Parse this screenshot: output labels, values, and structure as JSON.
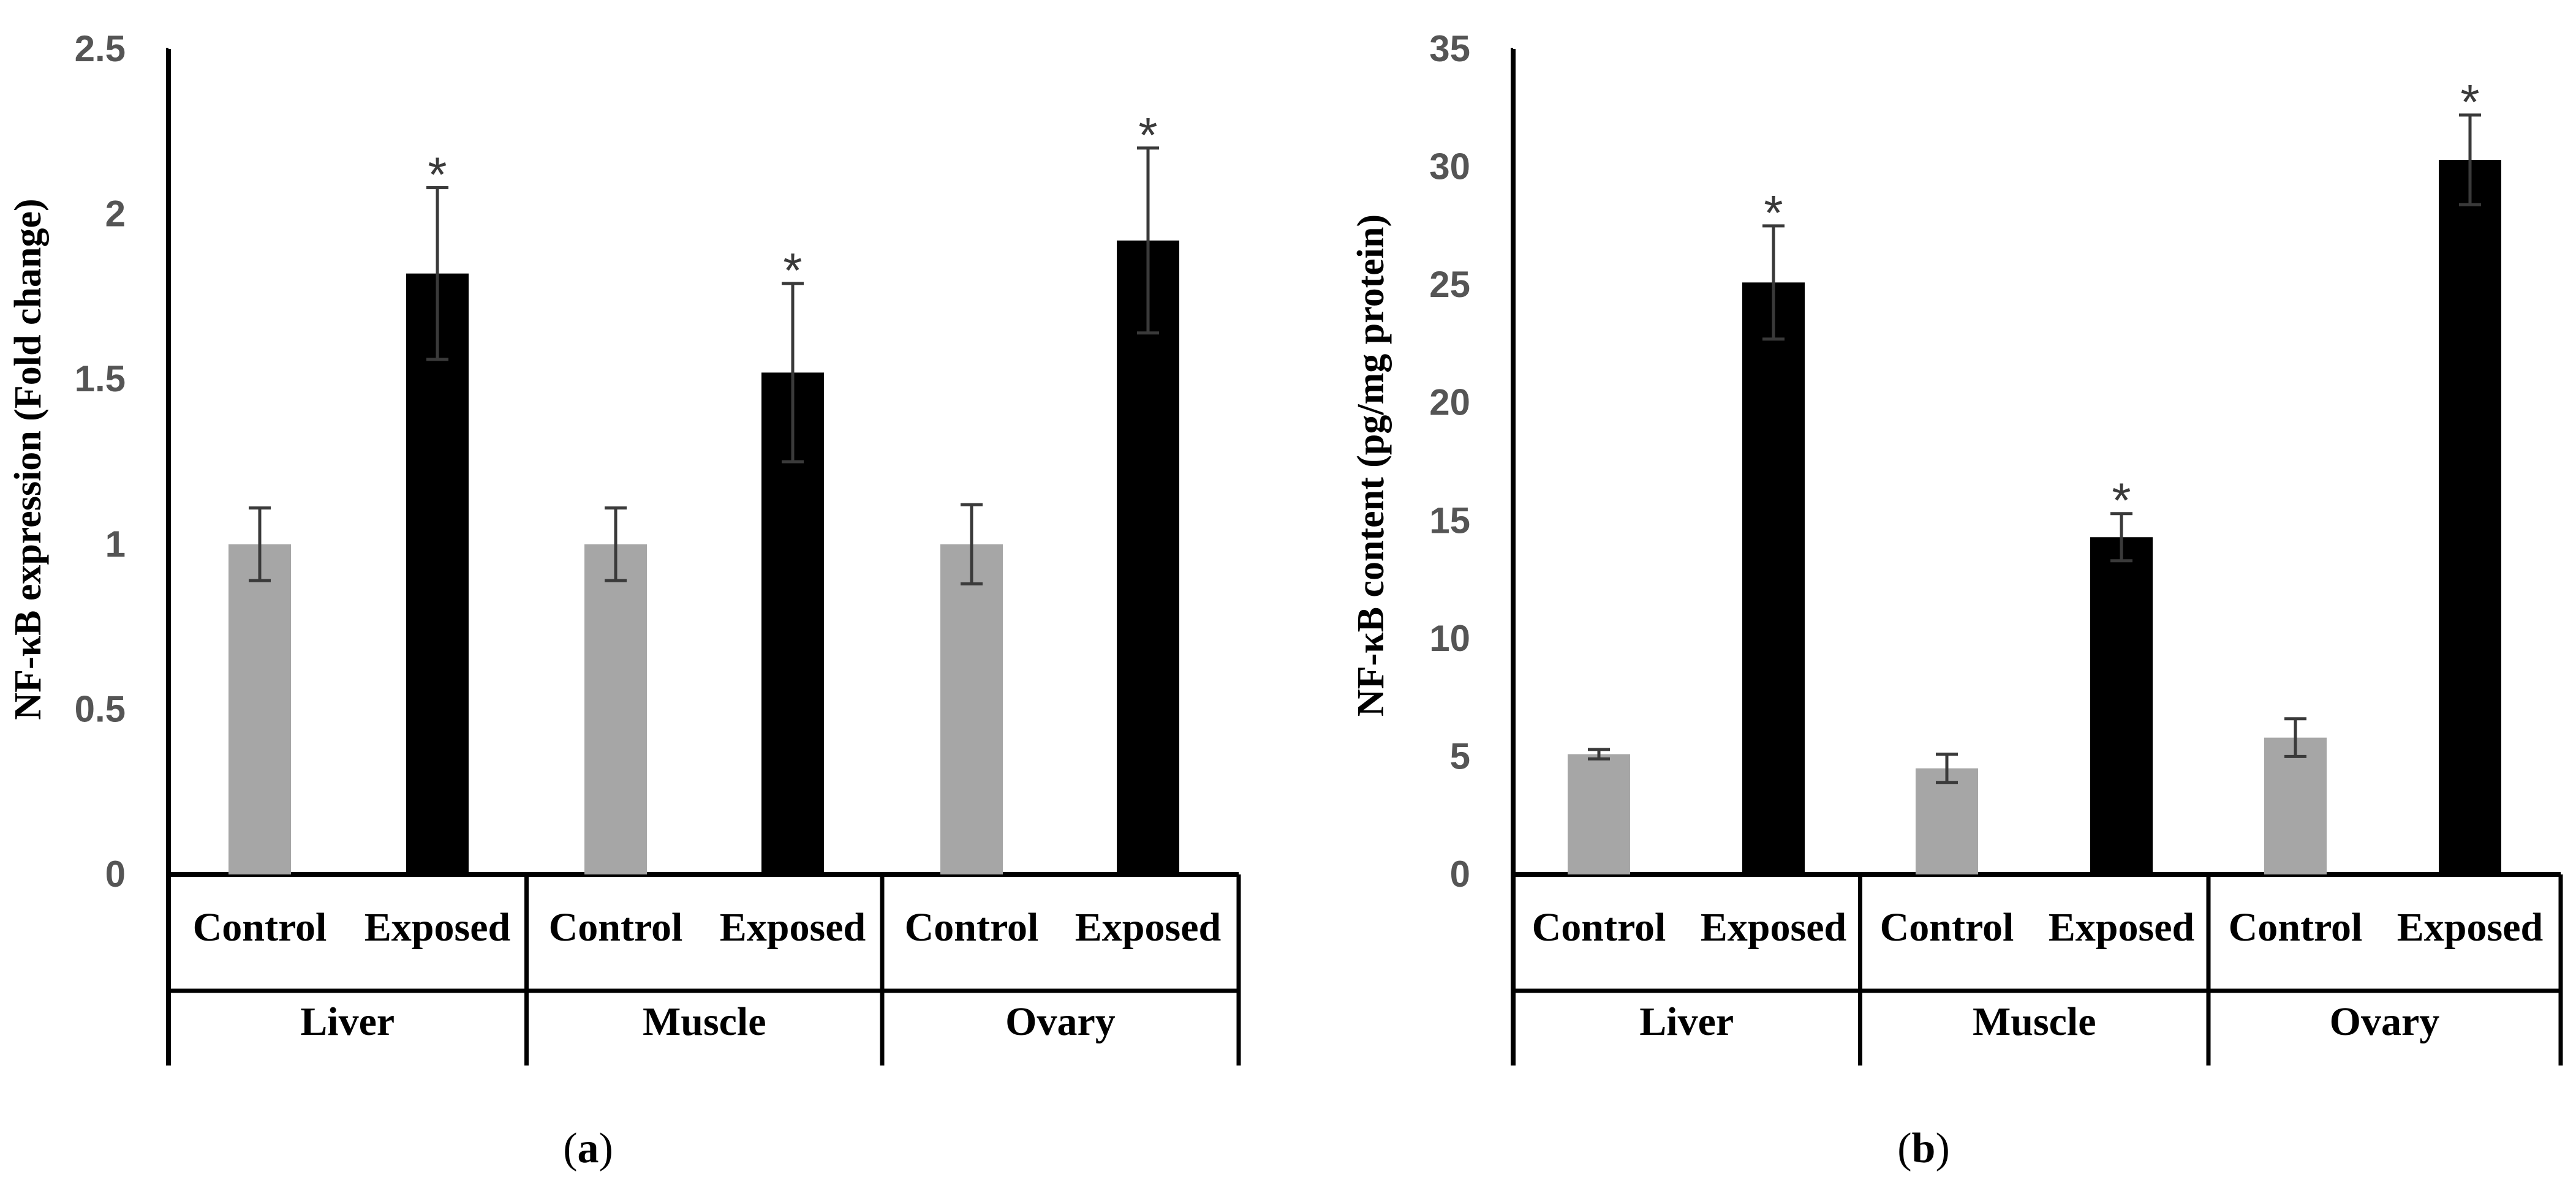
{
  "colors": {
    "control": "#a6a6a6",
    "exposed": "#000000",
    "axis": "#000000",
    "error_bar": "#3a3a3a"
  },
  "chart_data": [
    {
      "id": "a",
      "type": "bar",
      "panel_label": "a",
      "ylabel": "NF-κB expression (Fold change)",
      "ylim": [
        0,
        2.5
      ],
      "yticks": [
        0,
        0.5,
        1,
        1.5,
        2,
        2.5
      ],
      "ytick_labels": [
        "0",
        "0.5",
        "1",
        "1.5",
        "2",
        "2.5"
      ],
      "groups": [
        "Liver",
        "Muscle",
        "Ovary"
      ],
      "subcategories": [
        "Control",
        "Exposed"
      ],
      "series": [
        {
          "name": "Control",
          "values": [
            1.0,
            1.0,
            1.0
          ],
          "errors": [
            0.11,
            0.11,
            0.12
          ]
        },
        {
          "name": "Exposed",
          "values": [
            1.82,
            1.52,
            1.92
          ],
          "errors": [
            0.26,
            0.27,
            0.28
          ]
        }
      ],
      "significance_marker": "*",
      "significant": [
        [
          false,
          true
        ],
        [
          false,
          true
        ],
        [
          false,
          true
        ]
      ]
    },
    {
      "id": "b",
      "type": "bar",
      "panel_label": "b",
      "ylabel": "NF-κB content (pg/mg protein)",
      "ylim": [
        0,
        35
      ],
      "yticks": [
        0,
        5,
        10,
        15,
        20,
        25,
        30,
        35
      ],
      "ytick_labels": [
        "0",
        "5",
        "10",
        "15",
        "20",
        "25",
        "30",
        "35"
      ],
      "groups": [
        "Liver",
        "Muscle",
        "Ovary"
      ],
      "subcategories": [
        "Control",
        "Exposed"
      ],
      "series": [
        {
          "name": "Control",
          "values": [
            5.1,
            4.5,
            5.8
          ],
          "errors": [
            0.2,
            0.6,
            0.8
          ]
        },
        {
          "name": "Exposed",
          "values": [
            25.1,
            14.3,
            30.3
          ],
          "errors": [
            2.4,
            1.0,
            1.9
          ]
        }
      ],
      "significance_marker": "*",
      "significant": [
        [
          false,
          true
        ],
        [
          false,
          true
        ],
        [
          false,
          true
        ]
      ]
    }
  ]
}
